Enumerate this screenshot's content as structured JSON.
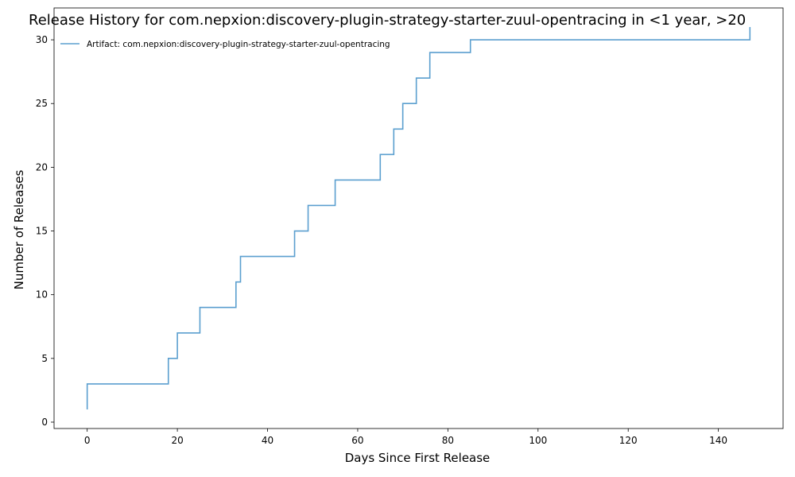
{
  "chart_data": {
    "type": "line",
    "step": "post",
    "title": "Release History for com.nepxion:discovery-plugin-strategy-starter-zuul-opentracing in <1 year, >20",
    "xlabel": "Days Since First Release",
    "ylabel": "Number of Releases",
    "xlim": [
      -7.35,
      154.35
    ],
    "ylim": [
      -0.5,
      32.5
    ],
    "xticks": [
      0,
      20,
      40,
      60,
      80,
      100,
      120,
      140
    ],
    "yticks": [
      0,
      5,
      10,
      15,
      20,
      25,
      30
    ],
    "grid": false,
    "legend_position": "upper-left",
    "series": [
      {
        "name": "Artifact: com.nepxion:discovery-plugin-strategy-starter-zuul-opentracing",
        "color": "#5b9fcf",
        "points": [
          [
            0,
            1
          ],
          [
            0,
            3
          ],
          [
            18,
            5
          ],
          [
            20,
            7
          ],
          [
            25,
            9
          ],
          [
            33,
            11
          ],
          [
            34,
            13
          ],
          [
            46,
            15
          ],
          [
            49,
            17
          ],
          [
            55,
            19
          ],
          [
            65,
            21
          ],
          [
            68,
            23
          ],
          [
            70,
            25
          ],
          [
            73,
            27
          ],
          [
            76,
            29
          ],
          [
            85,
            30
          ],
          [
            147,
            30
          ],
          [
            147,
            31
          ]
        ]
      }
    ]
  }
}
